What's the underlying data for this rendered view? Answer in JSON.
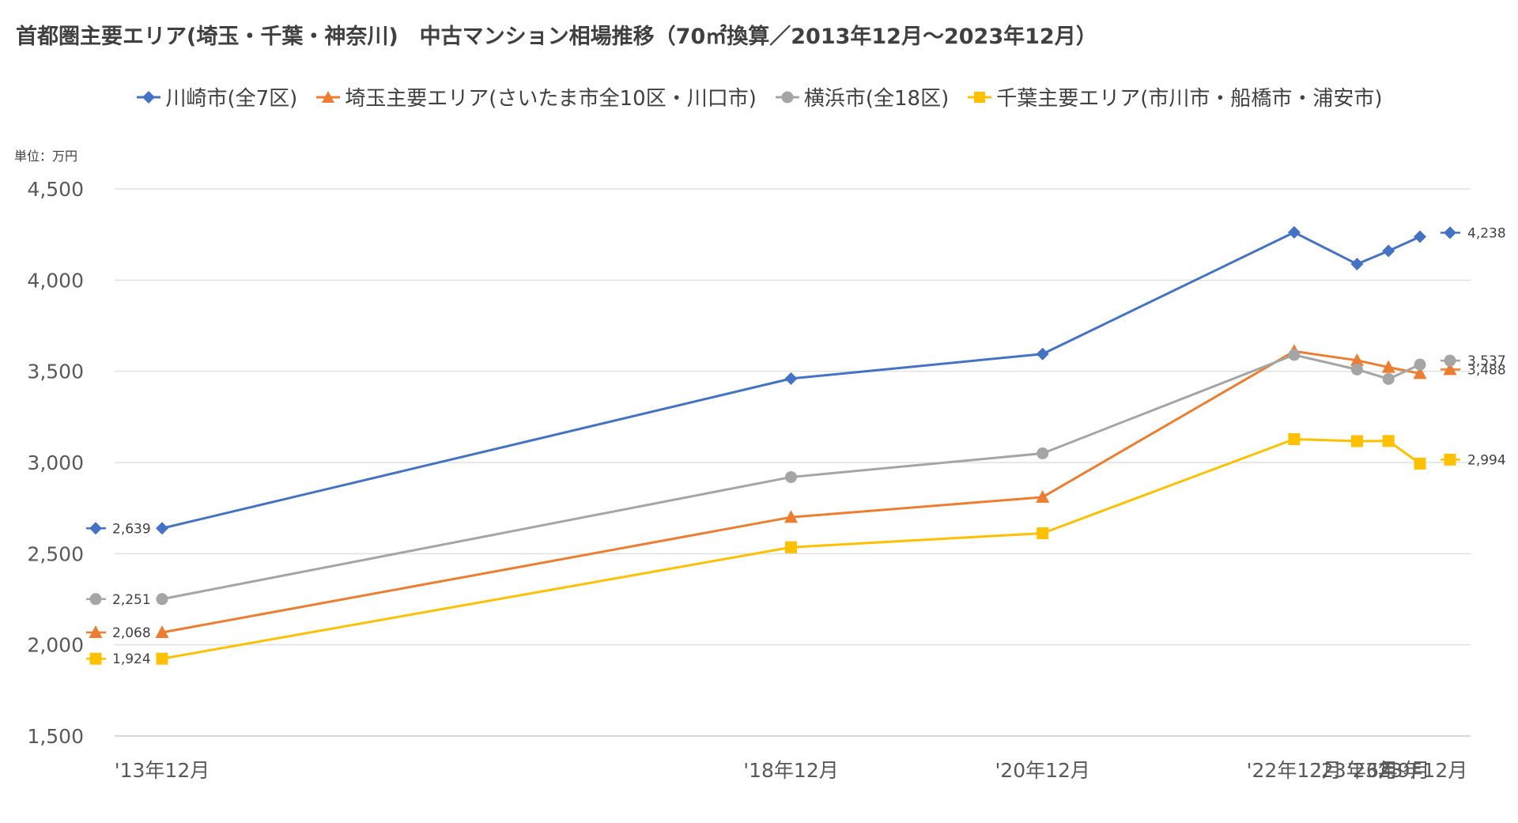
{
  "chart_data": {
    "type": "line",
    "title": "首都圏主要エリア(埼玉・千葉・神奈川)　中古マンション相場推移（70㎡換算／2013年12月〜2023年12月）",
    "unit_label": "単位：万円",
    "x": [
      "'13年12月",
      "'18年12月",
      "'20年12月",
      "'22年12月",
      "'23年6月",
      "'23年9月",
      "'23年12月"
    ],
    "x_months": [
      0,
      60,
      84,
      108,
      114,
      117,
      120
    ],
    "ylim": [
      1500,
      4500
    ],
    "yticks": [
      1500,
      2000,
      2500,
      3000,
      3500,
      4000,
      4500
    ],
    "ytick_labels": [
      "1,500",
      "2,000",
      "2,500",
      "3,000",
      "3,500",
      "4,000",
      "4,500"
    ],
    "grid": true,
    "legend_position": "top",
    "series": [
      {
        "name": "川崎市(全7区)",
        "color": "#4472C4",
        "marker": "diamond",
        "values": [
          2639,
          3460,
          3595,
          4262,
          4088,
          4160,
          4238
        ],
        "start_label": "2,639",
        "end_label": "4,238"
      },
      {
        "name": "埼玉主要エリア(さいたま市全10区・川口市)",
        "color": "#ED7D31",
        "marker": "triangle",
        "values": [
          2068,
          2700,
          2810,
          3610,
          3560,
          3522,
          3488
        ],
        "start_label": "2,068",
        "end_label": "3,488"
      },
      {
        "name": "横浜市(全18区)",
        "color": "#A5A5A5",
        "marker": "circle",
        "values": [
          2251,
          2920,
          3050,
          3590,
          3510,
          3458,
          3537
        ],
        "start_label": "2,251",
        "end_label": "3,537"
      },
      {
        "name": "千葉主要エリア(市川市・船橋市・浦安市)",
        "color": "#FFC000",
        "marker": "square",
        "values": [
          1924,
          2535,
          2612,
          3128,
          3117,
          3118,
          2994
        ],
        "start_label": "1,924",
        "end_label": "2,994"
      }
    ]
  }
}
